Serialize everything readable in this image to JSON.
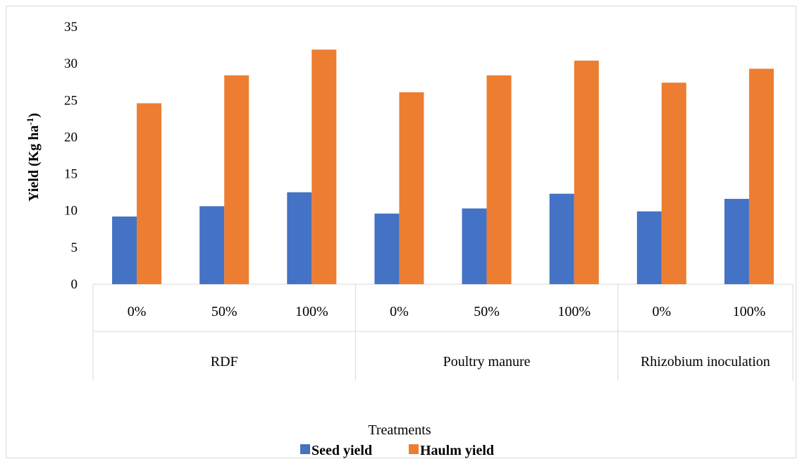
{
  "chart_data": {
    "type": "bar",
    "ylabel": "Yield (Kg ha-1)",
    "ylabel_main": "Yield (Kg ha",
    "ylabel_sup": "-1",
    "ylabel_close": ")",
    "xlabel": "Treatments",
    "ylim": [
      0,
      35
    ],
    "yticks": [
      "0",
      "5",
      "10",
      "15",
      "20",
      "25",
      "30",
      "35"
    ],
    "grid": false,
    "legend_position": "bottom",
    "groups": [
      {
        "label": "RDF",
        "categories": [
          "0%",
          "50%",
          "100%"
        ]
      },
      {
        "label": "Poultry manure",
        "categories": [
          "0%",
          "50%",
          "100%"
        ]
      },
      {
        "label": "Rhizobium inoculation",
        "categories": [
          "0%",
          "100%"
        ]
      }
    ],
    "categories": [
      "0%",
      "50%",
      "100%",
      "0%",
      "50%",
      "100%",
      "0%",
      "100%"
    ],
    "series": [
      {
        "name": "Seed yield",
        "color": "#4472C4",
        "values": [
          9.2,
          10.6,
          12.5,
          9.6,
          10.3,
          12.3,
          9.9,
          11.6
        ]
      },
      {
        "name": "Haulm yield",
        "color": "#ED7D31",
        "values": [
          24.6,
          28.4,
          31.9,
          26.1,
          28.4,
          30.4,
          27.4,
          29.3
        ]
      }
    ]
  }
}
